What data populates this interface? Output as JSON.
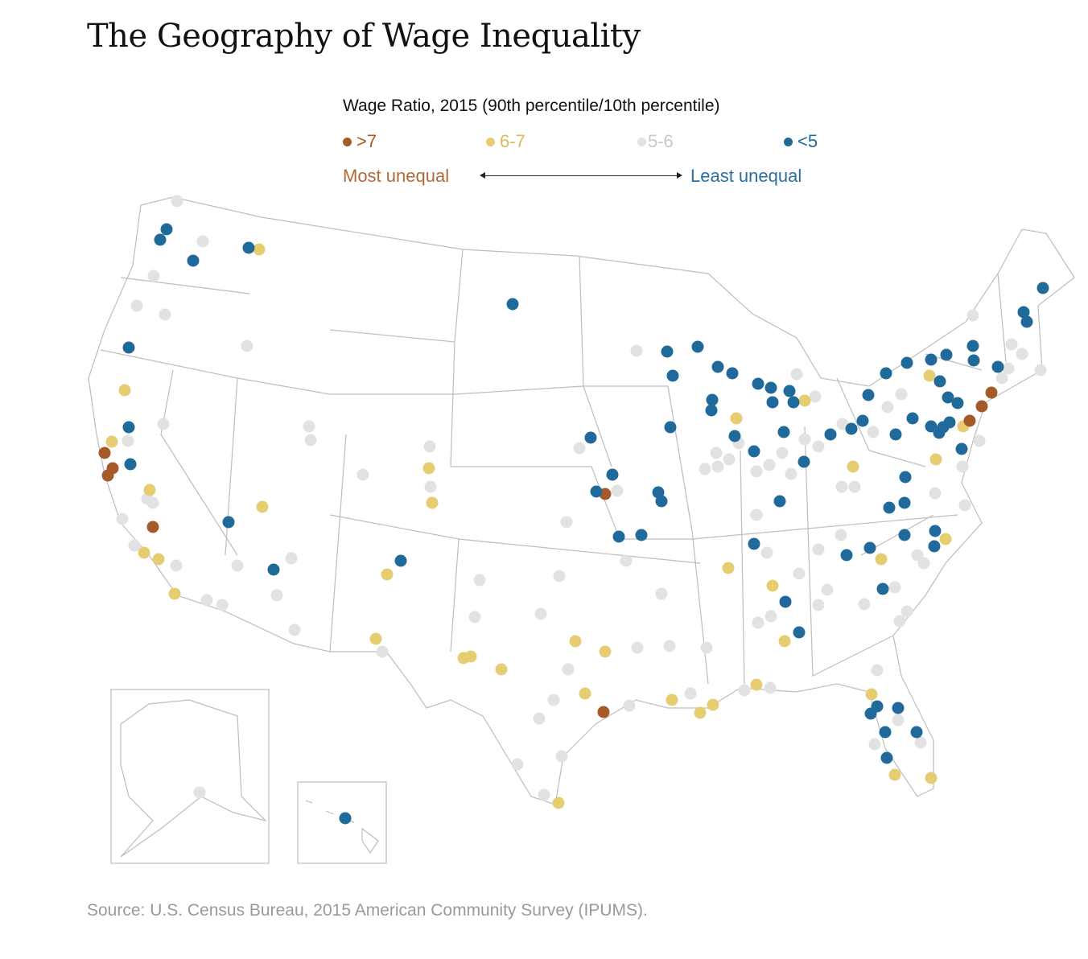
{
  "title": "The Geography of Wage Inequality",
  "legend": {
    "title": "Wage Ratio, 2015 (90th percentile/10th percentile)",
    "categories": [
      {
        "label": ">7",
        "color": "#a65a2a"
      },
      {
        "label": "6-7",
        "color": "#e6cd72"
      },
      {
        "label": "5-6",
        "color": "#e2e2e2"
      },
      {
        "label": "<5",
        "color": "#1f6a9a"
      }
    ],
    "most_unequal": "Most unequal",
    "least_unequal": "Least unequal"
  },
  "source": "Source: U.S. Census Bureau, 2015 American Community Survey (IPUMS)."
}
